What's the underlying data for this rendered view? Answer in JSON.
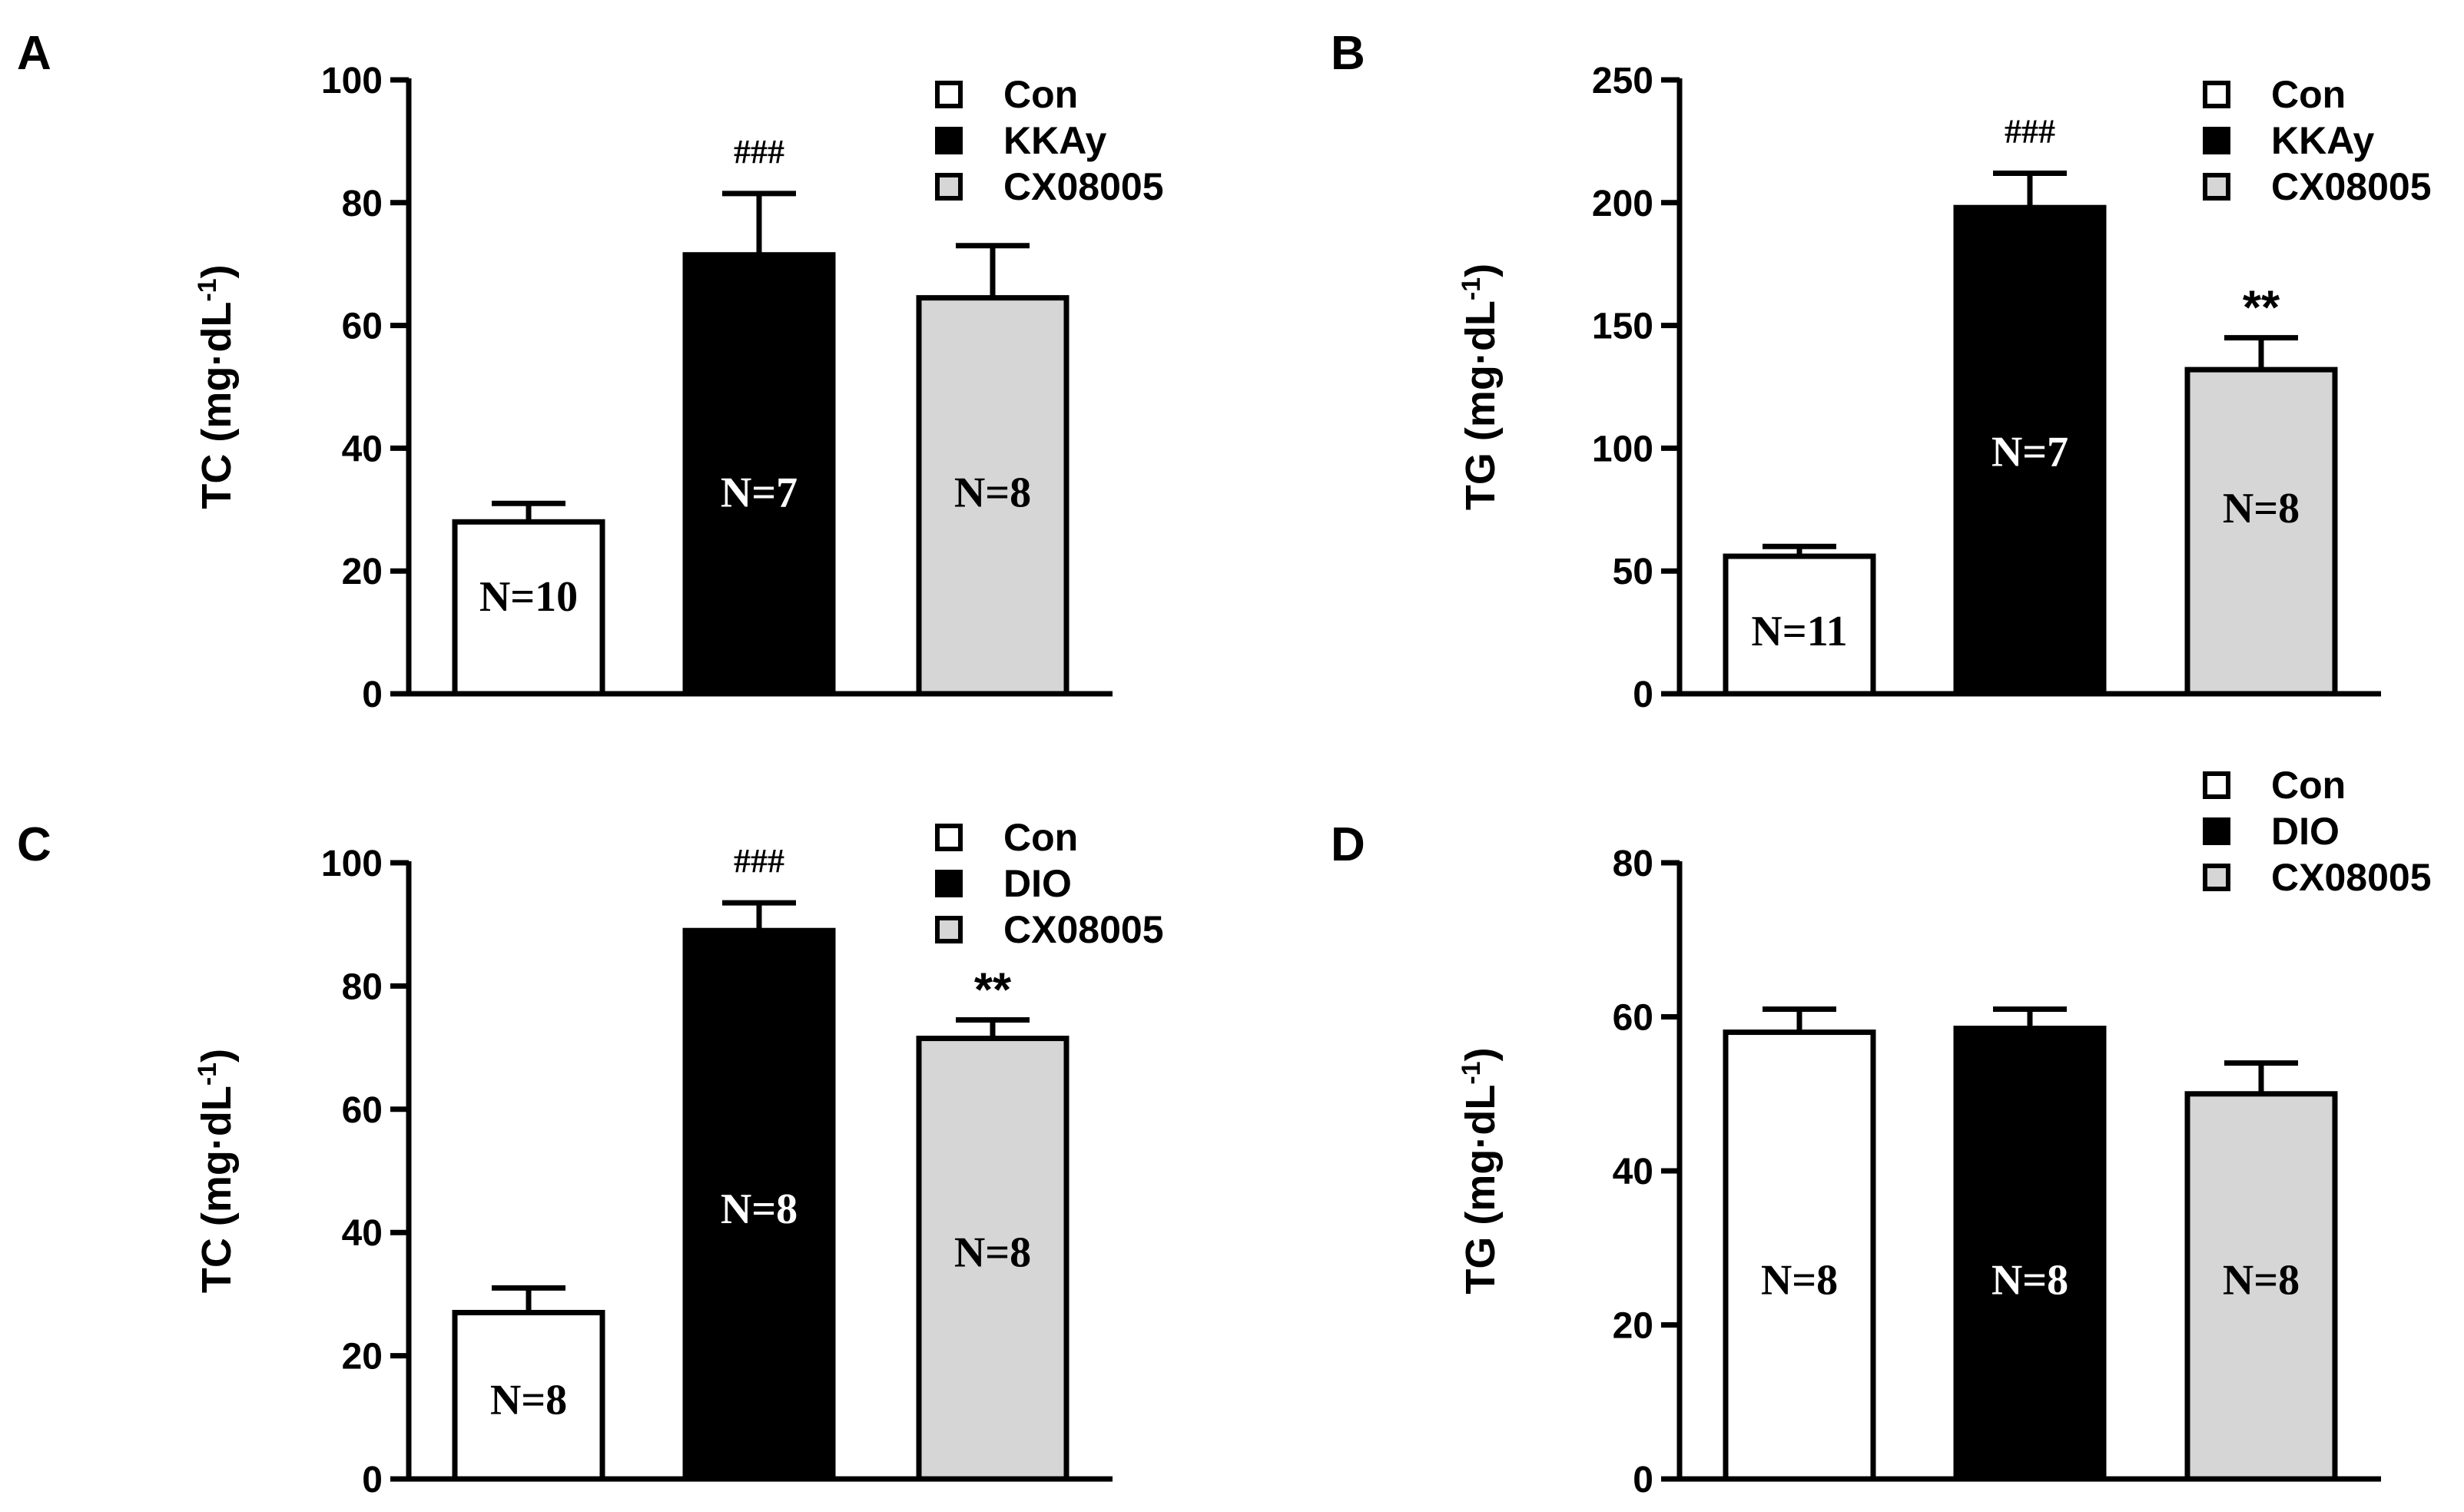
{
  "colors": {
    "con": "#ffffff",
    "model": "#000000",
    "cx08005": "#d6d6d6",
    "stroke": "#000000"
  },
  "chart_data": [
    {
      "panel": "A",
      "type": "bar",
      "ylabel": "TC (mg·dL",
      "ylabel_sup": "-1",
      "ylabel_tail": ")",
      "ylim": [
        0,
        100
      ],
      "ticks": [
        "0",
        "20",
        "40",
        "60",
        "80",
        "100"
      ],
      "tick_values": [
        0,
        20,
        40,
        60,
        80,
        100
      ],
      "legend": [
        "Con",
        "KKAy",
        "CX08005"
      ],
      "categories": [
        "Con",
        "KKAy",
        "CX08005"
      ],
      "values": [
        28,
        71.5,
        64.5
      ],
      "errors": [
        3,
        10,
        8.5
      ],
      "n_labels": [
        "N=10",
        "N=7",
        "N=8"
      ],
      "n_label_values": [
        16,
        33,
        33
      ],
      "significance": [
        "",
        "###",
        ""
      ]
    },
    {
      "panel": "B",
      "type": "bar",
      "ylabel": "TG (mg·dL",
      "ylabel_sup": "-1",
      "ylabel_tail": ")",
      "ylim": [
        0,
        250
      ],
      "ticks": [
        "0",
        "50",
        "100",
        "150",
        "200",
        "250"
      ],
      "tick_values": [
        0,
        50,
        100,
        150,
        200,
        250
      ],
      "legend": [
        "Con",
        "KKAy",
        "CX08005"
      ],
      "categories": [
        "Con",
        "KKAy",
        "CX08005"
      ],
      "values": [
        56,
        198,
        132
      ],
      "errors": [
        4,
        14,
        13
      ],
      "n_labels": [
        "N=11",
        "N=7",
        "N=8"
      ],
      "n_label_values": [
        26,
        99,
        76
      ],
      "significance": [
        "",
        "###",
        "**"
      ]
    },
    {
      "panel": "C",
      "type": "bar",
      "ylabel": "TC (mg·dL",
      "ylabel_sup": "-1",
      "ylabel_tail": ")",
      "ylim": [
        0,
        100
      ],
      "ticks": [
        "0",
        "20",
        "40",
        "60",
        "80",
        "100"
      ],
      "tick_values": [
        0,
        20,
        40,
        60,
        80,
        100
      ],
      "legend": [
        "Con",
        "DIO",
        "CX08005"
      ],
      "categories": [
        "Con",
        "DIO",
        "CX08005"
      ],
      "values": [
        27,
        89,
        71.5
      ],
      "errors": [
        4,
        4.5,
        3
      ],
      "n_labels": [
        "N=8",
        "N=8",
        "N=8"
      ],
      "n_label_values": [
        13,
        44,
        37
      ],
      "significance": [
        "",
        "###",
        "**"
      ]
    },
    {
      "panel": "D",
      "type": "bar",
      "ylabel": "TG (mg·dL",
      "ylabel_sup": "-1",
      "ylabel_tail": ")",
      "ylim": [
        0,
        80
      ],
      "ticks": [
        "0",
        "20",
        "40",
        "60",
        "80"
      ],
      "tick_values": [
        0,
        20,
        40,
        60,
        80
      ],
      "legend": [
        "Con",
        "DIO",
        "CX08005"
      ],
      "categories": [
        "Con",
        "DIO",
        "CX08005"
      ],
      "values": [
        58,
        58.5,
        50
      ],
      "errors": [
        3,
        2.5,
        4
      ],
      "n_labels": [
        "N=8",
        "N=8",
        "N=8"
      ],
      "n_label_values": [
        26,
        26,
        26
      ],
      "significance": [
        "",
        "",
        ""
      ]
    }
  ]
}
